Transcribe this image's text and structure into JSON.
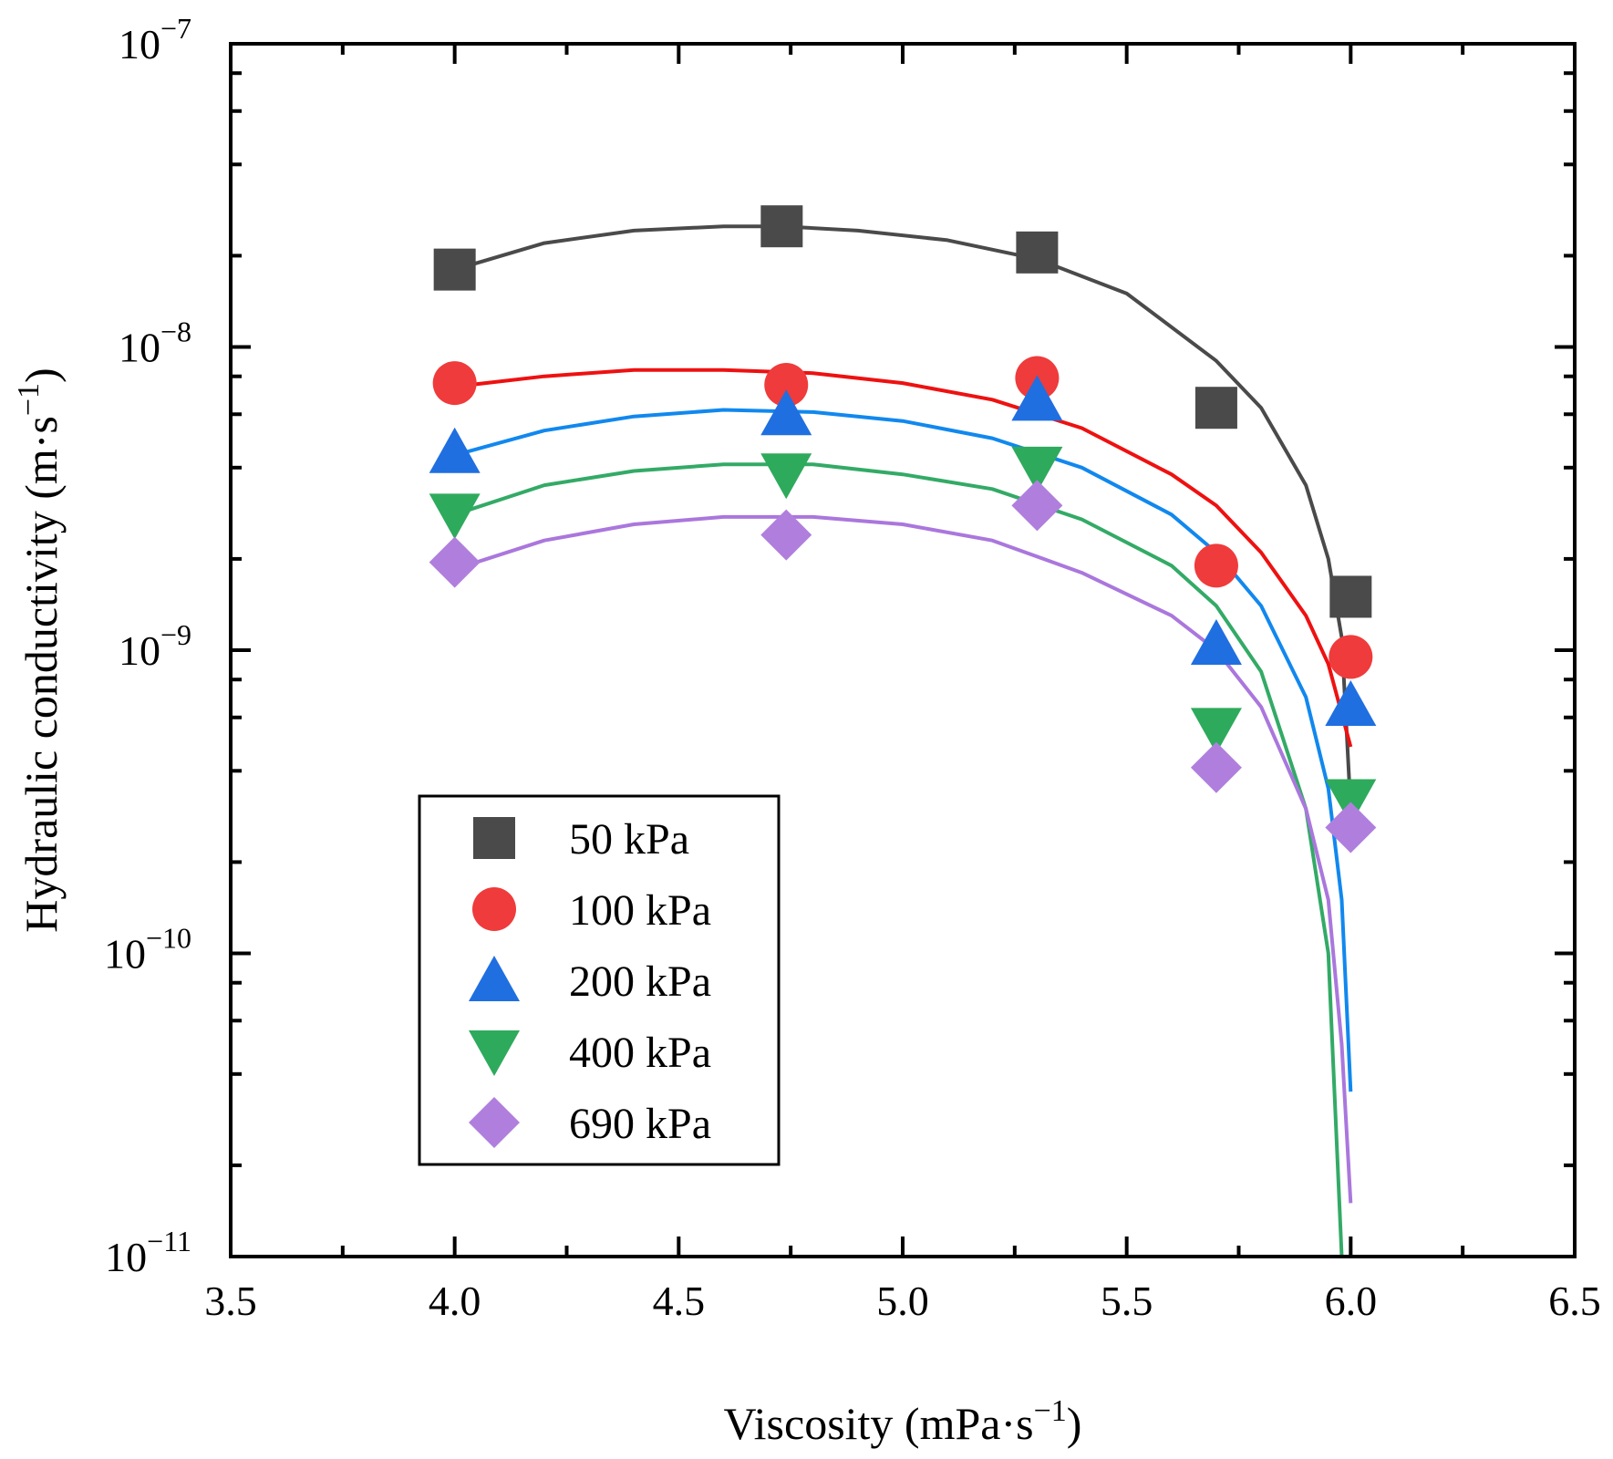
{
  "chart_data": {
    "type": "scatter",
    "title": "",
    "xlabel": "Viscosity (mPa·s",
    "xlabel_sup": "−1",
    "xlabel_close": ")",
    "ylabel": "Hydraulic conductivity (m·s",
    "ylabel_sup": "−1",
    "ylabel_close": ")",
    "xlim": [
      3.5,
      6.5
    ],
    "ylim": [
      1e-11,
      1e-07
    ],
    "yscale": "log",
    "x_ticks": [
      3.5,
      4.0,
      4.5,
      5.0,
      5.5,
      6.0,
      6.5
    ],
    "x_tick_labels": [
      "3.5",
      "4.0",
      "4.5",
      "5.0",
      "5.5",
      "6.0",
      "6.5"
    ],
    "y_ticks": [
      {
        "base": "10",
        "exp": "−7",
        "value": 1e-07
      },
      {
        "base": "10",
        "exp": "−8",
        "value": 1e-08
      },
      {
        "base": "10",
        "exp": "−9",
        "value": 1e-09
      },
      {
        "base": "10",
        "exp": "−10",
        "value": 1e-10
      },
      {
        "base": "10",
        "exp": "−11",
        "value": 1e-11
      }
    ],
    "legend_position": "bottom-left",
    "grid": false,
    "series": [
      {
        "name": "50 kPa",
        "marker": "square",
        "color": "#4a4a4a",
        "line_color": "#4a4a4a",
        "x": [
          4.0,
          4.73,
          5.3,
          5.7,
          6.0
        ],
        "y": [
          1.8e-08,
          2.5e-08,
          2.05e-08,
          6.3e-09,
          1.5e-09
        ],
        "fit": {
          "x": [
            4.0,
            4.2,
            4.4,
            4.6,
            4.73,
            4.9,
            5.1,
            5.3,
            5.5,
            5.7,
            5.8,
            5.9,
            5.95,
            5.98,
            6.0
          ],
          "y": [
            1.8e-08,
            2.2e-08,
            2.42e-08,
            2.5e-08,
            2.5e-08,
            2.42e-08,
            2.25e-08,
            1.95e-08,
            1.5e-08,
            9e-09,
            6.3e-09,
            3.5e-09,
            2e-09,
            1.1e-09,
            3e-10
          ]
        }
      },
      {
        "name": "100 kPa",
        "marker": "circle",
        "color": "#ef3b3b",
        "line_color": "#ee1111",
        "x": [
          4.0,
          4.74,
          5.3,
          5.7,
          6.0
        ],
        "y": [
          7.6e-09,
          7.5e-09,
          7.9e-09,
          1.9e-09,
          9.5e-10
        ],
        "fit": {
          "x": [
            4.0,
            4.2,
            4.4,
            4.6,
            4.8,
            5.0,
            5.2,
            5.4,
            5.6,
            5.7,
            5.8,
            5.9,
            5.95,
            6.0
          ],
          "y": [
            7.4e-09,
            8e-09,
            8.4e-09,
            8.4e-09,
            8.2e-09,
            7.6e-09,
            6.7e-09,
            5.4e-09,
            3.8e-09,
            3e-09,
            2.1e-09,
            1.3e-09,
            9e-10,
            4.8e-10
          ]
        }
      },
      {
        "name": "200 kPa",
        "marker": "triangle-up",
        "color": "#1f6fe0",
        "line_color": "#1188ee",
        "x": [
          4.0,
          4.74,
          5.3,
          5.7,
          6.0
        ],
        "y": [
          4.5e-09,
          6e-09,
          6.7e-09,
          1.05e-09,
          6.6e-10
        ],
        "fit": {
          "x": [
            4.0,
            4.2,
            4.4,
            4.6,
            4.8,
            5.0,
            5.2,
            5.4,
            5.6,
            5.7,
            5.8,
            5.9,
            5.95,
            5.98,
            6.0
          ],
          "y": [
            4.4e-09,
            5.3e-09,
            5.9e-09,
            6.2e-09,
            6.1e-09,
            5.7e-09,
            5e-09,
            4e-09,
            2.8e-09,
            2.1e-09,
            1.4e-09,
            7e-10,
            3.5e-10,
            1.5e-10,
            3.5e-11
          ]
        }
      },
      {
        "name": "400 kPa",
        "marker": "triangle-down",
        "color": "#2eaa5c",
        "line_color": "#33aa66",
        "x": [
          4.0,
          4.74,
          5.3,
          5.7,
          6.0
        ],
        "y": [
          2.8e-09,
          3.8e-09,
          4e-09,
          5.5e-10,
          3.2e-10
        ],
        "fit": {
          "x": [
            4.0,
            4.2,
            4.4,
            4.6,
            4.8,
            5.0,
            5.2,
            5.4,
            5.6,
            5.7,
            5.8,
            5.9,
            5.95,
            5.98
          ],
          "y": [
            2.8e-09,
            3.5e-09,
            3.9e-09,
            4.1e-09,
            4.1e-09,
            3.8e-09,
            3.4e-09,
            2.7e-09,
            1.9e-09,
            1.4e-09,
            8.5e-10,
            3e-10,
            1e-10,
            1e-11
          ]
        }
      },
      {
        "name": "690 kPa",
        "marker": "diamond",
        "color": "#b07fdd",
        "line_color": "#aa77dd",
        "x": [
          4.0,
          4.74,
          5.3,
          5.7,
          6.0
        ],
        "y": [
          1.95e-09,
          2.4e-09,
          3e-09,
          4.1e-10,
          2.6e-10
        ],
        "fit": {
          "x": [
            4.0,
            4.2,
            4.4,
            4.6,
            4.8,
            5.0,
            5.2,
            5.4,
            5.6,
            5.7,
            5.8,
            5.9,
            5.95,
            5.98,
            6.0
          ],
          "y": [
            1.85e-09,
            2.3e-09,
            2.6e-09,
            2.75e-09,
            2.75e-09,
            2.6e-09,
            2.3e-09,
            1.8e-09,
            1.3e-09,
            1e-09,
            6.5e-10,
            3e-10,
            1.5e-10,
            5e-11,
            1.5e-11
          ]
        }
      }
    ]
  }
}
